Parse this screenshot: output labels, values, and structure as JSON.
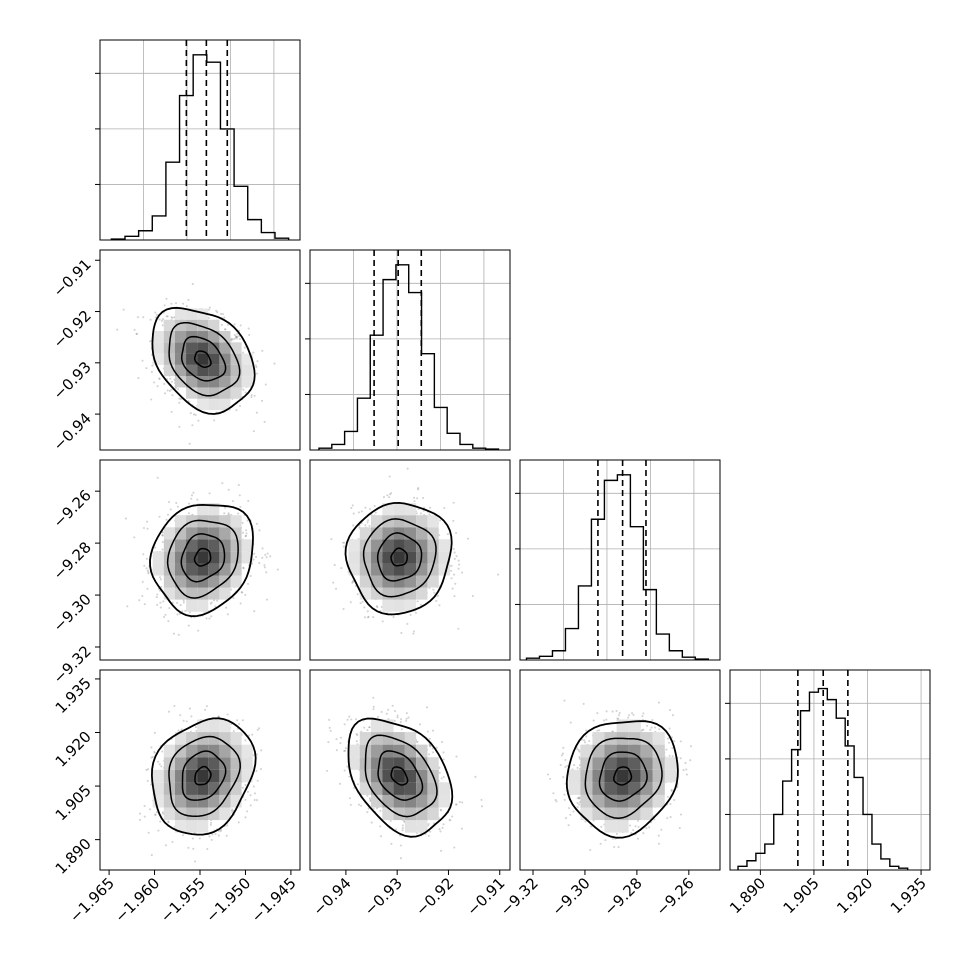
{
  "figure": {
    "kind": "corner plot",
    "parameter_count": 4,
    "colors": {
      "line": "#000000",
      "grid": "#b0b0b0",
      "scatter": "#808080",
      "frame": "#000000"
    }
  },
  "chart_data": [
    {
      "type": "histogram",
      "param": 0,
      "row": 0,
      "col": 0,
      "xlim": [
        -1.966,
        -1.944
      ],
      "xticks": [],
      "bins": [
        -1.964,
        -1.9625,
        -1.961,
        -1.9595,
        -1.958,
        -1.9565,
        -1.955,
        -1.9535,
        -1.952,
        -1.9505,
        -1.949,
        -1.9475,
        -1.946
      ],
      "counts": [
        0.5,
        2,
        5,
        13,
        42,
        78,
        100,
        96,
        60,
        29,
        11,
        4,
        1
      ],
      "quantiles": [
        -1.9565,
        -1.9543,
        -1.952
      ],
      "ymax": 108,
      "grid": true
    },
    {
      "type": "scatter-contour",
      "row": 1,
      "col": 0,
      "x_param": 0,
      "y_param": 1,
      "center": [
        -1.9547,
        -0.9293
      ],
      "sigma": [
        0.0025,
        0.0045
      ],
      "rho": -0.3,
      "xlim": [
        -1.966,
        -1.944
      ],
      "ylim": [
        -0.947,
        -0.908
      ],
      "yticks": [
        "-0.91",
        "-0.92",
        "-0.93",
        "-0.94"
      ],
      "ytick_values": [
        -0.91,
        -0.92,
        -0.93,
        -0.94
      ]
    },
    {
      "type": "histogram",
      "param": 1,
      "row": 1,
      "col": 1,
      "xlim": [
        -0.947,
        -0.908
      ],
      "xticks": [],
      "bins": [
        -0.944,
        -0.9415,
        -0.939,
        -0.9365,
        -0.934,
        -0.9315,
        -0.929,
        -0.9265,
        -0.924,
        -0.9215,
        -0.919,
        -0.9165,
        -0.914,
        -0.9115
      ],
      "counts": [
        1,
        3,
        10,
        28,
        62,
        92,
        100,
        85,
        52,
        23,
        9,
        3,
        1,
        0.5
      ],
      "quantiles": [
        -0.9345,
        -0.9298,
        -0.9253
      ],
      "ymax": 108,
      "grid": true
    },
    {
      "type": "scatter-contour",
      "row": 2,
      "col": 0,
      "x_param": 0,
      "y_param": 2,
      "center": [
        -1.9547,
        -9.2855
      ],
      "sigma": [
        0.0025,
        0.0095
      ],
      "rho": 0.15,
      "xlim": [
        -1.966,
        -1.944
      ],
      "ylim": [
        -9.325,
        -9.248
      ],
      "yticks": [
        "-9.26",
        "-9.28",
        "-9.30",
        "-9.32"
      ],
      "ytick_values": [
        -9.26,
        -9.28,
        -9.3,
        -9.32
      ]
    },
    {
      "type": "scatter-contour",
      "row": 2,
      "col": 1,
      "x_param": 1,
      "y_param": 2,
      "center": [
        -0.9296,
        -9.2855
      ],
      "sigma": [
        0.0045,
        0.0095
      ],
      "rho": 0.05,
      "xlim": [
        -0.947,
        -0.908
      ],
      "ylim": [
        -9.325,
        -9.248
      ]
    },
    {
      "type": "histogram",
      "param": 2,
      "row": 2,
      "col": 2,
      "xlim": [
        -9.325,
        -9.248
      ],
      "xticks": [],
      "bins": [
        -9.32,
        -9.315,
        -9.31,
        -9.305,
        -9.3,
        -9.295,
        -9.29,
        -9.285,
        -9.28,
        -9.275,
        -9.27,
        -9.265,
        -9.26,
        -9.255
      ],
      "counts": [
        1,
        2,
        5,
        17,
        40,
        76,
        97,
        100,
        72,
        38,
        14,
        5,
        1.5,
        0.5
      ],
      "quantiles": [
        -9.295,
        -9.2855,
        -9.2765
      ],
      "ymax": 108,
      "grid": true
    },
    {
      "type": "scatter-contour",
      "row": 3,
      "col": 0,
      "x_param": 0,
      "y_param": 3,
      "center": [
        -1.9547,
        1.9078
      ],
      "sigma": [
        0.0025,
        0.0072
      ],
      "rho": 0.2,
      "xlim": [
        -1.966,
        -1.944
      ],
      "ylim": [
        1.8815,
        1.9375
      ],
      "yticks": [
        "1.935",
        "1.920",
        "1.905",
        "1.890"
      ],
      "ytick_values": [
        1.935,
        1.92,
        1.905,
        1.89
      ],
      "xticks": [
        "-1.965",
        "-1.960",
        "-1.955",
        "-1.950",
        "-1.945"
      ],
      "xtick_values": [
        -1.965,
        -1.96,
        -1.955,
        -1.95,
        -1.945
      ]
    },
    {
      "type": "scatter-contour",
      "row": 3,
      "col": 1,
      "x_param": 1,
      "y_param": 3,
      "center": [
        -0.9296,
        1.9078
      ],
      "sigma": [
        0.0045,
        0.0072
      ],
      "rho": -0.35,
      "xlim": [
        -0.947,
        -0.908
      ],
      "ylim": [
        1.8815,
        1.9375
      ],
      "xticks": [
        "-0.94",
        "-0.93",
        "-0.92",
        "-0.91"
      ],
      "xtick_values": [
        -0.94,
        -0.93,
        -0.92,
        -0.91
      ]
    },
    {
      "type": "scatter-contour",
      "row": 3,
      "col": 2,
      "x_param": 2,
      "y_param": 3,
      "center": [
        -9.2855,
        1.9078
      ],
      "sigma": [
        0.0095,
        0.0072
      ],
      "rho": 0.1,
      "xlim": [
        -9.325,
        -9.248
      ],
      "ylim": [
        1.8815,
        1.9375
      ],
      "xticks": [
        "-9.32",
        "-9.30",
        "-9.28",
        "-9.26"
      ],
      "xtick_values": [
        -9.32,
        -9.3,
        -9.28,
        -9.26
      ]
    },
    {
      "type": "histogram",
      "param": 3,
      "row": 3,
      "col": 3,
      "xlim": [
        1.8815,
        1.9375
      ],
      "bins": [
        1.885,
        1.8875,
        1.89,
        1.8925,
        1.895,
        1.8975,
        1.9,
        1.9025,
        1.905,
        1.9075,
        1.91,
        1.9125,
        1.915,
        1.9175,
        1.92,
        1.9225,
        1.925,
        1.9275,
        1.93
      ],
      "counts": [
        2,
        5,
        9,
        14,
        30,
        48,
        65,
        86,
        96,
        98,
        92,
        82,
        67,
        50,
        30,
        14,
        6,
        2,
        1
      ],
      "quantiles": [
        1.9005,
        1.9076,
        1.9145
      ],
      "ymax": 108,
      "grid": true,
      "xticks": [
        "1.890",
        "1.905",
        "1.920",
        "1.935"
      ],
      "xtick_values": [
        1.89,
        1.905,
        1.92,
        1.935
      ]
    }
  ]
}
